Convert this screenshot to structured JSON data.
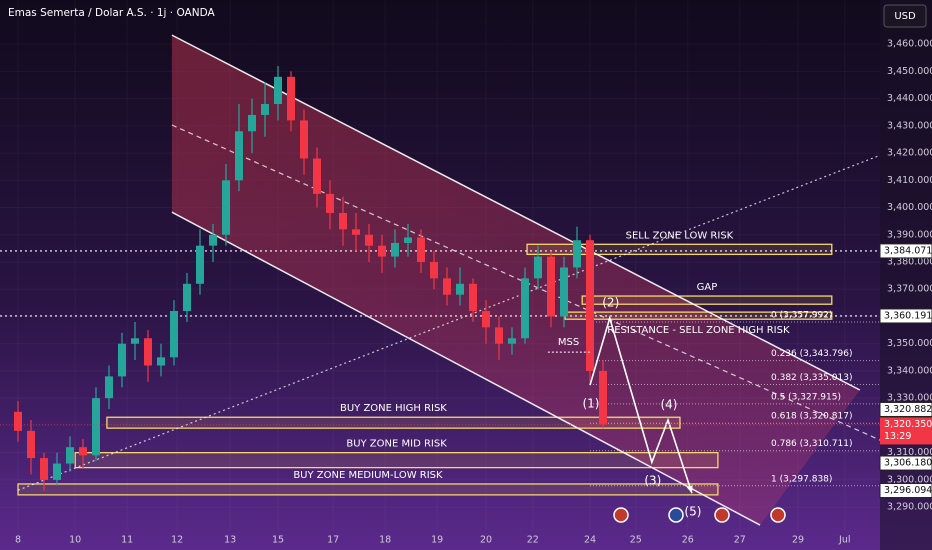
{
  "chart_data": {
    "type": "candlestick",
    "title": "Emas Semerta / Dolar A.S. · 1j · OANDA",
    "currency": "USD",
    "up_color": "#26a69a",
    "down_color": "#f23645",
    "xlim": [
      -0.346,
      16.577
    ],
    "ylim": [
      3281.6,
      3476.2
    ],
    "xticks": [
      {
        "value": 0,
        "label": "8"
      },
      {
        "value": 1.1,
        "label": "10"
      },
      {
        "value": 2.1,
        "label": "11"
      },
      {
        "value": 3.06,
        "label": "12"
      },
      {
        "value": 4.08,
        "label": "13"
      },
      {
        "value": 5,
        "label": "15"
      },
      {
        "value": 6.06,
        "label": "17"
      },
      {
        "value": 7.06,
        "label": "18"
      },
      {
        "value": 8.06,
        "label": "19"
      },
      {
        "value": 9,
        "label": "20"
      },
      {
        "value": 9.9,
        "label": "22"
      },
      {
        "value": 11,
        "label": "24"
      },
      {
        "value": 11.88,
        "label": "25"
      },
      {
        "value": 12.88,
        "label": "26"
      },
      {
        "value": 13.88,
        "label": "27"
      },
      {
        "value": 15,
        "label": "29"
      },
      {
        "value": 15.9,
        "label": "Jul"
      }
    ],
    "yticks": [
      {
        "value": 3290,
        "label": "3,290.000"
      },
      {
        "value": 3300,
        "label": "3,300.000"
      },
      {
        "value": 3310,
        "label": "3,310.000"
      },
      {
        "value": 3320,
        "label": "3,320.000"
      },
      {
        "value": 3330,
        "label": "3,330.000"
      },
      {
        "value": 3340,
        "label": "3,340.000"
      },
      {
        "value": 3350,
        "label": "3,350.000"
      },
      {
        "value": 3360,
        "label": "3,360.000"
      },
      {
        "value": 3370,
        "label": "3,370.000"
      },
      {
        "value": 3380,
        "label": "3,380.000"
      },
      {
        "value": 3390,
        "label": "3,390.000"
      },
      {
        "value": 3400,
        "label": "3,400.000"
      },
      {
        "value": 3410,
        "label": "3,410.000"
      },
      {
        "value": 3420,
        "label": "3,420.000"
      },
      {
        "value": 3430,
        "label": "3,430.000"
      },
      {
        "value": 3440,
        "label": "3,440.000"
      },
      {
        "value": 3450,
        "label": "3,450.000"
      },
      {
        "value": 3460,
        "label": "3,460.000"
      }
    ],
    "x": [
      0,
      0.25,
      0.5,
      0.75,
      1,
      1.25,
      1.5,
      1.75,
      2,
      2.25,
      2.5,
      2.75,
      3,
      3.25,
      3.5,
      3.75,
      4,
      4.25,
      4.5,
      4.75,
      5,
      5.25,
      5.5,
      5.75,
      6,
      6.25,
      6.5,
      6.75,
      7,
      7.25,
      7.5,
      7.75,
      8,
      8.25,
      8.5,
      8.75,
      9,
      9.25,
      9.5,
      9.75,
      10,
      10.25,
      10.5,
      10.75,
      11,
      11.25
    ],
    "candles": [
      [
        3325,
        3329,
        3314,
        3318
      ],
      [
        3318,
        3322,
        3302,
        3308
      ],
      [
        3308,
        3310,
        3296,
        3300
      ],
      [
        3300,
        3310,
        3298,
        3306
      ],
      [
        3306,
        3316,
        3303,
        3312
      ],
      [
        3312,
        3315,
        3304,
        3309
      ],
      [
        3309,
        3334,
        3307,
        3330
      ],
      [
        3330,
        3342,
        3326,
        3338
      ],
      [
        3338,
        3354,
        3334,
        3350
      ],
      [
        3350,
        3358,
        3344,
        3352
      ],
      [
        3352,
        3355,
        3336,
        3342
      ],
      [
        3342,
        3350,
        3338,
        3345
      ],
      [
        3345,
        3366,
        3342,
        3362
      ],
      [
        3362,
        3376,
        3358,
        3372
      ],
      [
        3372,
        3392,
        3368,
        3386
      ],
      [
        3386,
        3394,
        3380,
        3390
      ],
      [
        3390,
        3416,
        3386,
        3410
      ],
      [
        3410,
        3438,
        3406,
        3428
      ],
      [
        3428,
        3440,
        3420,
        3434
      ],
      [
        3434,
        3446,
        3426,
        3438
      ],
      [
        3438,
        3452,
        3432,
        3448
      ],
      [
        3448,
        3450,
        3428,
        3432
      ],
      [
        3432,
        3436,
        3412,
        3418
      ],
      [
        3418,
        3422,
        3400,
        3405
      ],
      [
        3405,
        3410,
        3392,
        3398
      ],
      [
        3398,
        3404,
        3386,
        3392
      ],
      [
        3392,
        3398,
        3384,
        3390
      ],
      [
        3390,
        3394,
        3380,
        3386
      ],
      [
        3386,
        3390,
        3376,
        3382
      ],
      [
        3382,
        3392,
        3378,
        3387
      ],
      [
        3387,
        3394,
        3382,
        3389
      ],
      [
        3389,
        3392,
        3376,
        3380
      ],
      [
        3380,
        3384,
        3370,
        3374
      ],
      [
        3374,
        3378,
        3364,
        3368
      ],
      [
        3368,
        3378,
        3364,
        3372
      ],
      [
        3372,
        3374,
        3358,
        3362
      ],
      [
        3362,
        3366,
        3350,
        3356
      ],
      [
        3356,
        3360,
        3344,
        3350
      ],
      [
        3350,
        3356,
        3346,
        3352
      ],
      [
        3352,
        3378,
        3350,
        3374
      ],
      [
        3374,
        3386,
        3370,
        3382
      ],
      [
        3382,
        3384,
        3356,
        3360
      ],
      [
        3360,
        3382,
        3356,
        3378
      ],
      [
        3378,
        3393,
        3374,
        3388
      ],
      [
        3388,
        3390,
        3336,
        3340
      ],
      [
        3340,
        3344,
        3319,
        3320.35
      ]
    ],
    "hlines": [
      3384.071,
      3360.191
    ],
    "trend_lines": [
      {
        "x": [
          2.96,
          16.19
        ],
        "y": [
          3463.3,
          3333.0
        ],
        "style": "solid"
      },
      {
        "x": [
          2.96,
          14.27
        ],
        "y": [
          3398.3,
          3283.4
        ],
        "style": "solid"
      },
      {
        "x": [
          2.96,
          16.58
        ],
        "y": [
          3430.3,
          3314.6
        ],
        "style": "dashed"
      },
      {
        "x": [
          0,
          16.58
        ],
        "y": [
          3296.2,
          3419.2
        ],
        "style": "dotted"
      }
    ],
    "zones": [
      {
        "label": "SELL ZONE LOW RISK",
        "top": 3386.5,
        "bottom": 3382.8,
        "x0": 9.79,
        "x1": 15.65,
        "side": "above"
      },
      {
        "label": "GAP",
        "top": 3367.5,
        "bottom": 3364.5,
        "x0": 10.85,
        "x1": 15.65,
        "side": "above"
      },
      {
        "label": "RESISTANCE - SELL ZONE HIGH RISK",
        "top": 3361.6,
        "bottom": 3359.0,
        "x0": 10.52,
        "x1": 15.65,
        "side": "below"
      },
      {
        "label": "BUY ZONE HIGH RISK",
        "top": 3323,
        "bottom": 3319,
        "x0": 1.71,
        "x1": 12.73,
        "side": "above"
      },
      {
        "label": "BUY ZONE MID RISK",
        "top": 3310,
        "bottom": 3304.5,
        "x0": 1.1,
        "x1": 13.46,
        "side": "above"
      },
      {
        "label": "BUY ZONE MEDIUM-LOW RISK",
        "top": 3298.5,
        "bottom": 3294.5,
        "x0": 0,
        "x1": 13.46,
        "side": "above"
      }
    ],
    "fib_levels": [
      {
        "value": 3357.992,
        "label": "0 (3,357.992)"
      },
      {
        "value": 3343.796,
        "label": "0.236 (3,343.796)"
      },
      {
        "value": 3335.013,
        "label": "0.382 (3,335.013)"
      },
      {
        "value": 3327.915,
        "label": "0.5 (3,327.915)"
      },
      {
        "value": 3320.817,
        "label": "0.618 (3,320.817)"
      },
      {
        "value": 3310.711,
        "label": "0.786 (3,310.711)"
      },
      {
        "value": 3297.838,
        "label": "1 (3,297.838)"
      }
    ],
    "wave": {
      "x": [
        11.0,
        11.38,
        12.19,
        12.5,
        12.96
      ],
      "y": [
        3334.8,
        3359.4,
        3306.5,
        3322.0,
        3295.1
      ],
      "labels": [
        "(1)",
        "(2)",
        "(3)",
        "(4)",
        "(5)"
      ]
    },
    "mss": {
      "label": "MSS",
      "x": [
        10.19,
        11.0
      ],
      "y": 3346.9
    },
    "price_markers": [
      {
        "value": 3384.071,
        "label": "3,384.071"
      },
      {
        "value": 3360.191,
        "label": "3,360.191"
      },
      {
        "value": 3320.882,
        "label": "3,320.882"
      },
      {
        "value": 3306.18,
        "label": "3,306.180"
      },
      {
        "value": 3296.094,
        "label": "3,296.094"
      }
    ],
    "last_price": {
      "value": 3320.35,
      "label": "3,320.350",
      "countdown": "13:29"
    }
  }
}
